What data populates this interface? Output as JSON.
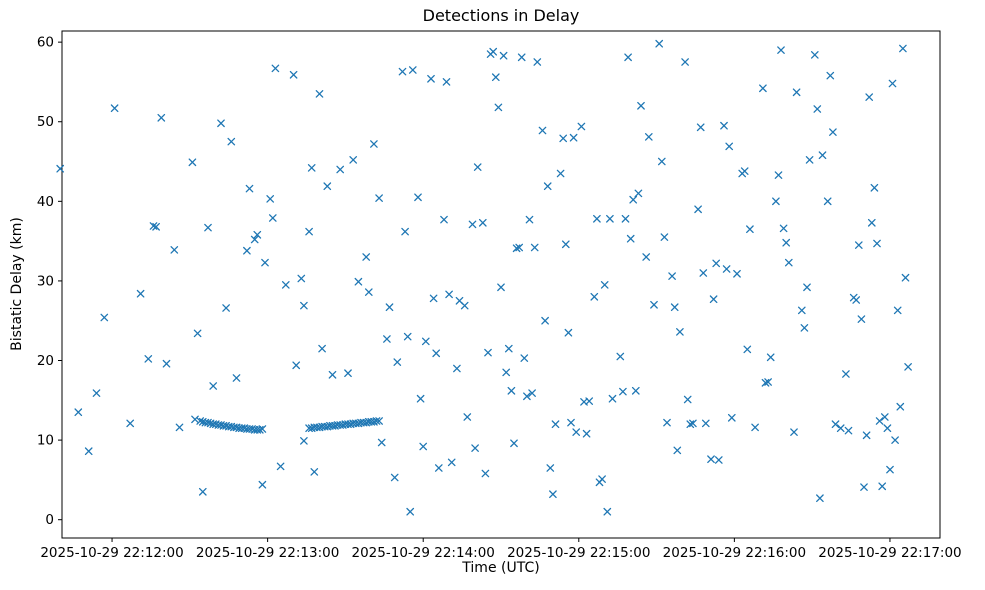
{
  "chart_data": {
    "type": "scatter",
    "title": "Detections in Delay",
    "xlabel": "Time (UTC)",
    "ylabel": "Bistatic Delay (km)",
    "marker": "x",
    "marker_color": "#1f77b4",
    "grid": false,
    "legend": null,
    "x_unit": "seconds since 2025-10-29 22:12:00 UTC",
    "xlim": [
      -19.3,
      319.3
    ],
    "ylim": [
      -2.3,
      61.4
    ],
    "x_ticks": [
      {
        "t": 0,
        "label": "2025-10-29 22:12:00"
      },
      {
        "t": 60,
        "label": "2025-10-29 22:13:00"
      },
      {
        "t": 120,
        "label": "2025-10-29 22:14:00"
      },
      {
        "t": 180,
        "label": "2025-10-29 22:15:00"
      },
      {
        "t": 240,
        "label": "2025-10-29 22:16:00"
      },
      {
        "t": 300,
        "label": "2025-10-29 22:17:00"
      }
    ],
    "y_ticks": [
      0,
      10,
      20,
      30,
      40,
      50,
      60
    ],
    "points": [
      [
        -20,
        44.1
      ],
      [
        -13,
        13.5
      ],
      [
        -9,
        8.6
      ],
      [
        -6,
        15.9
      ],
      [
        -3,
        25.4
      ],
      [
        1,
        51.7
      ],
      [
        7,
        12.1
      ],
      [
        11,
        28.4
      ],
      [
        14,
        20.2
      ],
      [
        16,
        36.9
      ],
      [
        17,
        36.8
      ],
      [
        19,
        50.5
      ],
      [
        21,
        19.6
      ],
      [
        24,
        33.9
      ],
      [
        26,
        11.6
      ],
      [
        31,
        44.9
      ],
      [
        33,
        23.4
      ],
      [
        35,
        3.5
      ],
      [
        37,
        36.7
      ],
      [
        39,
        16.8
      ],
      [
        42,
        49.8
      ],
      [
        44,
        26.6
      ],
      [
        46,
        47.5
      ],
      [
        48,
        17.8
      ],
      [
        52,
        33.8
      ],
      [
        53,
        41.6
      ],
      [
        55,
        35.2
      ],
      [
        56,
        35.8
      ],
      [
        58,
        4.4
      ],
      [
        59,
        32.3
      ],
      [
        61,
        40.3
      ],
      [
        62,
        37.9
      ],
      [
        63,
        56.7
      ],
      [
        65,
        6.7
      ],
      [
        67,
        29.5
      ],
      [
        70,
        55.9
      ],
      [
        71,
        19.4
      ],
      [
        73,
        30.3
      ],
      [
        74,
        26.9
      ],
      [
        74,
        9.9
      ],
      [
        76,
        36.2
      ],
      [
        77,
        44.2
      ],
      [
        78,
        6.0
      ],
      [
        80,
        53.5
      ],
      [
        81,
        21.5
      ],
      [
        83,
        41.9
      ],
      [
        85,
        18.2
      ],
      [
        88,
        44.0
      ],
      [
        91,
        18.4
      ],
      [
        93,
        45.2
      ],
      [
        95,
        29.9
      ],
      [
        98,
        33.0
      ],
      [
        99,
        28.6
      ],
      [
        101,
        47.2
      ],
      [
        103,
        40.4
      ],
      [
        104,
        9.7
      ],
      [
        106,
        22.7
      ],
      [
        107,
        26.7
      ],
      [
        109,
        5.3
      ],
      [
        110,
        19.8
      ],
      [
        112,
        56.3
      ],
      [
        113,
        36.2
      ],
      [
        114,
        23.0
      ],
      [
        115,
        1.0
      ],
      [
        116,
        56.5
      ],
      [
        118,
        40.5
      ],
      [
        119,
        15.2
      ],
      [
        120,
        9.2
      ],
      [
        121,
        22.4
      ],
      [
        123,
        55.4
      ],
      [
        124,
        27.8
      ],
      [
        125,
        20.9
      ],
      [
        126,
        6.5
      ],
      [
        128,
        37.7
      ],
      [
        129,
        55.0
      ],
      [
        130,
        28.3
      ],
      [
        131,
        7.2
      ],
      [
        133,
        19.0
      ],
      [
        134,
        27.5
      ],
      [
        136,
        26.9
      ],
      [
        137,
        12.9
      ],
      [
        139,
        37.1
      ],
      [
        140,
        9.0
      ],
      [
        141,
        44.3
      ],
      [
        143,
        37.3
      ],
      [
        144,
        5.8
      ],
      [
        145,
        21.0
      ],
      [
        146,
        58.5
      ],
      [
        147,
        58.8
      ],
      [
        148,
        55.6
      ],
      [
        149,
        51.8
      ],
      [
        150,
        29.2
      ],
      [
        151,
        58.3
      ],
      [
        152,
        18.5
      ],
      [
        153,
        21.5
      ],
      [
        154,
        16.2
      ],
      [
        155,
        9.6
      ],
      [
        156,
        34.1
      ],
      [
        157,
        34.2
      ],
      [
        158,
        58.1
      ],
      [
        159,
        20.3
      ],
      [
        160,
        15.5
      ],
      [
        161,
        37.7
      ],
      [
        162,
        15.9
      ],
      [
        163,
        34.2
      ],
      [
        164,
        57.5
      ],
      [
        166,
        48.9
      ],
      [
        167,
        25.0
      ],
      [
        168,
        41.9
      ],
      [
        169,
        6.5
      ],
      [
        170,
        3.2
      ],
      [
        171,
        12.0
      ],
      [
        173,
        43.5
      ],
      [
        174,
        47.9
      ],
      [
        175,
        34.6
      ],
      [
        176,
        23.5
      ],
      [
        177,
        12.2
      ],
      [
        178,
        48.0
      ],
      [
        179,
        11.0
      ],
      [
        181,
        49.4
      ],
      [
        182,
        14.8
      ],
      [
        183,
        10.8
      ],
      [
        184,
        14.9
      ],
      [
        186,
        28.0
      ],
      [
        187,
        37.8
      ],
      [
        188,
        4.7
      ],
      [
        189,
        5.1
      ],
      [
        190,
        29.5
      ],
      [
        191,
        1.0
      ],
      [
        192,
        37.8
      ],
      [
        193,
        15.2
      ],
      [
        196,
        20.5
      ],
      [
        197,
        16.1
      ],
      [
        198,
        37.8
      ],
      [
        199,
        58.1
      ],
      [
        200,
        35.3
      ],
      [
        201,
        40.2
      ],
      [
        202,
        16.2
      ],
      [
        203,
        41.0
      ],
      [
        204,
        52.0
      ],
      [
        206,
        33.0
      ],
      [
        207,
        48.1
      ],
      [
        209,
        27.0
      ],
      [
        211,
        59.8
      ],
      [
        212,
        45.0
      ],
      [
        213,
        35.5
      ],
      [
        214,
        12.2
      ],
      [
        216,
        30.6
      ],
      [
        217,
        26.7
      ],
      [
        218,
        8.7
      ],
      [
        219,
        23.6
      ],
      [
        221,
        57.5
      ],
      [
        222,
        15.1
      ],
      [
        223,
        12.0
      ],
      [
        224,
        12.1
      ],
      [
        226,
        39.0
      ],
      [
        227,
        49.3
      ],
      [
        228,
        31.0
      ],
      [
        229,
        12.1
      ],
      [
        231,
        7.6
      ],
      [
        232,
        27.7
      ],
      [
        233,
        32.2
      ],
      [
        234,
        7.5
      ],
      [
        236,
        49.5
      ],
      [
        237,
        31.5
      ],
      [
        238,
        46.9
      ],
      [
        239,
        12.8
      ],
      [
        241,
        30.9
      ],
      [
        243,
        43.5
      ],
      [
        244,
        43.8
      ],
      [
        245,
        21.4
      ],
      [
        246,
        36.5
      ],
      [
        248,
        11.6
      ],
      [
        251,
        54.2
      ],
      [
        252,
        17.2
      ],
      [
        253,
        17.3
      ],
      [
        254,
        20.4
      ],
      [
        256,
        40.0
      ],
      [
        257,
        43.3
      ],
      [
        258,
        59.0
      ],
      [
        259,
        36.6
      ],
      [
        260,
        34.8
      ],
      [
        261,
        32.3
      ],
      [
        263,
        11.0
      ],
      [
        264,
        53.7
      ],
      [
        266,
        26.3
      ],
      [
        267,
        24.1
      ],
      [
        268,
        29.2
      ],
      [
        269,
        45.2
      ],
      [
        271,
        58.4
      ],
      [
        272,
        51.6
      ],
      [
        273,
        2.7
      ],
      [
        274,
        45.8
      ],
      [
        276,
        40.0
      ],
      [
        277,
        55.8
      ],
      [
        278,
        48.7
      ],
      [
        279,
        12.0
      ],
      [
        281,
        11.5
      ],
      [
        283,
        18.3
      ],
      [
        284,
        11.2
      ],
      [
        286,
        27.9
      ],
      [
        287,
        27.6
      ],
      [
        288,
        34.5
      ],
      [
        289,
        25.2
      ],
      [
        290,
        4.1
      ],
      [
        291,
        10.6
      ],
      [
        292,
        53.1
      ],
      [
        293,
        37.3
      ],
      [
        294,
        41.7
      ],
      [
        295,
        34.7
      ],
      [
        296,
        12.4
      ],
      [
        297,
        4.2
      ],
      [
        298,
        12.9
      ],
      [
        299,
        11.5
      ],
      [
        300,
        6.3
      ],
      [
        301,
        54.8
      ],
      [
        302,
        10.0
      ],
      [
        303,
        26.3
      ],
      [
        304,
        14.2
      ],
      [
        305,
        59.2
      ],
      [
        306,
        30.4
      ],
      [
        307,
        19.2
      ],
      [
        32,
        12.6
      ],
      [
        34,
        12.4
      ],
      [
        35,
        12.3
      ],
      [
        36,
        12.2
      ],
      [
        37,
        12.2
      ],
      [
        38,
        12.1
      ],
      [
        39,
        12.0
      ],
      [
        40,
        12.0
      ],
      [
        41,
        11.9
      ],
      [
        42,
        11.9
      ],
      [
        43,
        11.8
      ],
      [
        44,
        11.8
      ],
      [
        45,
        11.7
      ],
      [
        46,
        11.7
      ],
      [
        47,
        11.6
      ],
      [
        48,
        11.6
      ],
      [
        49,
        11.5
      ],
      [
        50,
        11.5
      ],
      [
        51,
        11.5
      ],
      [
        52,
        11.4
      ],
      [
        53,
        11.4
      ],
      [
        54,
        11.4
      ],
      [
        55,
        11.3
      ],
      [
        56,
        11.3
      ],
      [
        57,
        11.3
      ],
      [
        58,
        11.4
      ],
      [
        76,
        11.5
      ],
      [
        77,
        11.5
      ],
      [
        78,
        11.6
      ],
      [
        79,
        11.6
      ],
      [
        80,
        11.6
      ],
      [
        81,
        11.7
      ],
      [
        82,
        11.7
      ],
      [
        83,
        11.7
      ],
      [
        84,
        11.8
      ],
      [
        85,
        11.8
      ],
      [
        86,
        11.8
      ],
      [
        87,
        11.9
      ],
      [
        88,
        11.9
      ],
      [
        89,
        11.9
      ],
      [
        90,
        12.0
      ],
      [
        91,
        12.0
      ],
      [
        92,
        12.0
      ],
      [
        93,
        12.1
      ],
      [
        94,
        12.1
      ],
      [
        95,
        12.1
      ],
      [
        96,
        12.2
      ],
      [
        97,
        12.2
      ],
      [
        98,
        12.2
      ],
      [
        99,
        12.3
      ],
      [
        100,
        12.3
      ],
      [
        101,
        12.3
      ],
      [
        102,
        12.4
      ],
      [
        103,
        12.4
      ]
    ]
  }
}
